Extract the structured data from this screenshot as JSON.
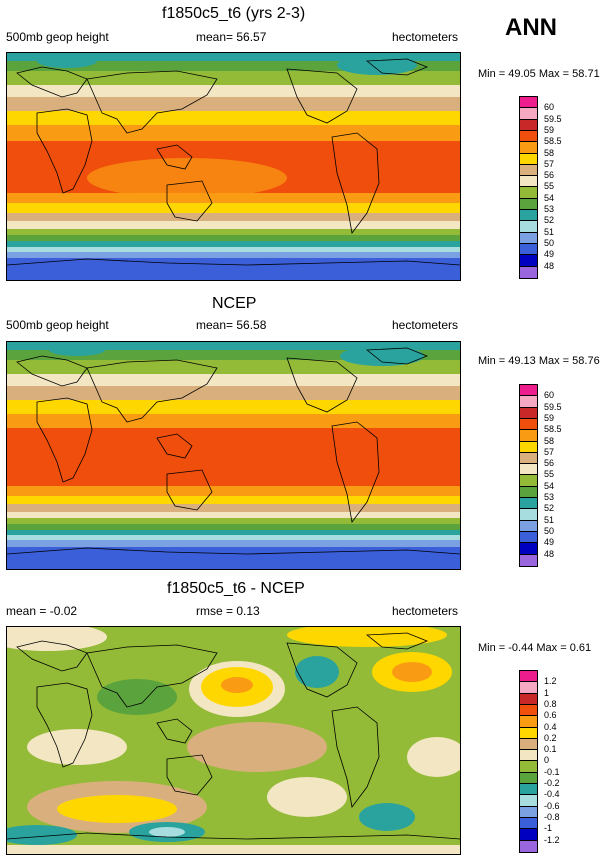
{
  "season": "ANN",
  "units": "hectometers",
  "panels": [
    {
      "title": "f1850c5_t6 (yrs 2-3)",
      "left_label": "500mb geop height",
      "center_label": "mean=  56.57",
      "right_label": "hectometers",
      "minmax": "Min =  49.05 Max =  58.71"
    },
    {
      "title": "NCEP",
      "left_label": "500mb geop height",
      "center_label": "mean=  56.58",
      "right_label": "hectometers",
      "minmax": "Min =  49.13 Max =  58.76"
    },
    {
      "title": "f1850c5_t6 - NCEP",
      "left_label": "mean =  -0.02",
      "center_label": "rmse =   0.13",
      "right_label": "hectometers",
      "minmax": "Min =  -0.44 Max =   0.61"
    }
  ],
  "chart_data": [
    {
      "type": "heatmap",
      "title": "f1850c5_t6 (yrs 2-3)",
      "variable": "500mb geop height",
      "units": "hectometers",
      "mean": 56.57,
      "min": 49.05,
      "max": 58.71,
      "colorbar": {
        "labels": [
          "60",
          "59.5",
          "59",
          "58.5",
          "58",
          "57",
          "56",
          "55",
          "54",
          "53",
          "52",
          "51",
          "50",
          "49",
          "48"
        ],
        "colors": [
          "#ee1d8e",
          "#f5a8c2",
          "#c82828",
          "#f04e0c",
          "#fa9b14",
          "#ffd700",
          "#d9b07d",
          "#f3e6c2",
          "#93bb37",
          "#5ba33d",
          "#2aa39e",
          "#a8dde0",
          "#7ca1e2",
          "#3a5fd8",
          "#0000c0",
          "#9966dd"
        ]
      }
    },
    {
      "type": "heatmap",
      "title": "NCEP",
      "variable": "500mb geop height",
      "units": "hectometers",
      "mean": 56.58,
      "min": 49.13,
      "max": 58.76,
      "colorbar": {
        "labels": [
          "60",
          "59.5",
          "59",
          "58.5",
          "58",
          "57",
          "56",
          "55",
          "54",
          "53",
          "52",
          "51",
          "50",
          "49",
          "48"
        ],
        "colors": [
          "#ee1d8e",
          "#f5a8c2",
          "#c82828",
          "#f04e0c",
          "#fa9b14",
          "#ffd700",
          "#d9b07d",
          "#f3e6c2",
          "#93bb37",
          "#5ba33d",
          "#2aa39e",
          "#a8dde0",
          "#7ca1e2",
          "#3a5fd8",
          "#0000c0",
          "#9966dd"
        ]
      }
    },
    {
      "type": "heatmap",
      "title": "f1850c5_t6 - NCEP",
      "units": "hectometers",
      "mean": -0.02,
      "rmse": 0.13,
      "min": -0.44,
      "max": 0.61,
      "colorbar": {
        "labels": [
          "1.2",
          "1",
          "0.8",
          "0.6",
          "0.4",
          "0.2",
          "0.1",
          "0",
          "-0.1",
          "-0.2",
          "-0.4",
          "-0.6",
          "-0.8",
          "-1",
          "-1.2"
        ],
        "colors": [
          "#ee1d8e",
          "#f5a8c2",
          "#c82828",
          "#f04e0c",
          "#fa9b14",
          "#ffd700",
          "#d9b07d",
          "#f3e6c2",
          "#93bb37",
          "#5ba33d",
          "#2aa39e",
          "#a8dde0",
          "#7ca1e2",
          "#3a5fd8",
          "#0000c0",
          "#9966dd"
        ]
      }
    }
  ]
}
